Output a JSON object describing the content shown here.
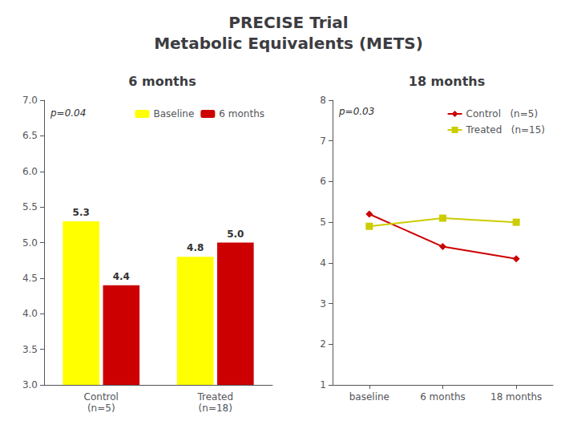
{
  "title": "PRECISE Trial\nMetabolic Equivalents (METS)",
  "chart_data": [
    {
      "type": "bar",
      "title": "6 months",
      "categories": [
        "Control\n(n=5)",
        "Treated\n(n=18)"
      ],
      "series": [
        {
          "name": "Baseline",
          "color": "#FFFF00",
          "values": [
            5.3,
            4.8
          ]
        },
        {
          "name": "6 months",
          "color": "#CC0000",
          "values": [
            4.4,
            5.0
          ],
          "value_labels": [
            "4.4",
            "5.0"
          ]
        }
      ],
      "ylim": [
        3,
        7
      ],
      "yticks": [
        {
          "value": 3,
          "label": "3.0"
        },
        {
          "value": 3.5,
          "label": "3.5"
        },
        {
          "value": 4,
          "label": "4.0"
        },
        {
          "value": 4.5,
          "label": "4.5"
        },
        {
          "value": 5,
          "label": "5.0"
        },
        {
          "value": 5.5,
          "label": "5.5"
        },
        {
          "value": 6,
          "label": "6.0"
        },
        {
          "value": 6.5,
          "label": "6.5"
        },
        {
          "value": 7,
          "label": "7.0"
        }
      ],
      "data_labels": true,
      "grid": false,
      "legend": "upper right",
      "annotations": [
        {
          "text": "p=0.04",
          "y": 6.75
        }
      ]
    },
    {
      "type": "line",
      "title": "18 months",
      "categories": [
        "baseline",
        "6 months",
        "18 months"
      ],
      "series": [
        {
          "name": "Control   (n=5)",
          "color": "#CC0000",
          "marker": "diamond",
          "values": [
            5.2,
            4.4,
            4.1
          ]
        },
        {
          "name": "Treated   (n=15)",
          "color": "#CCCC00",
          "marker": "square",
          "values": [
            4.9,
            5.1,
            5.0
          ]
        }
      ],
      "ylim": [
        1,
        8
      ],
      "yticks": [
        1,
        2,
        3,
        4,
        5,
        6,
        7,
        8
      ],
      "grid": false,
      "legend": "upper right",
      "annotations": [
        {
          "text": "p=0.03",
          "y": 7.6
        }
      ]
    }
  ]
}
